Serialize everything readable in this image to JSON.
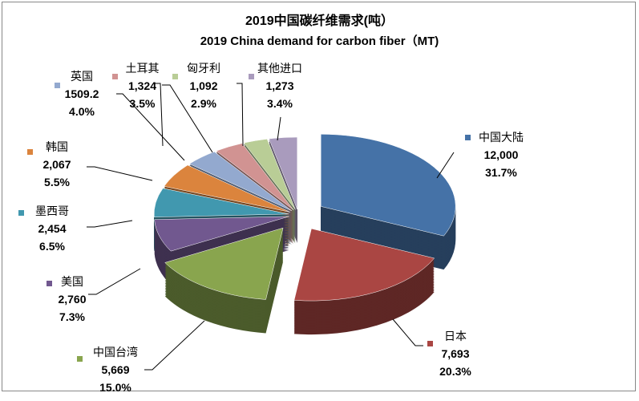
{
  "chart_data": {
    "type": "pie",
    "style": "3d-exploded",
    "title": "2019中国碳纤维需求(吨）",
    "subtitle": "2019 China demand for carbon fiber（MT)",
    "slices": [
      {
        "label": "中国大陆",
        "value": "12,000",
        "num": 12000,
        "pct": "31.7%",
        "color": "#4572A7"
      },
      {
        "label": "日本",
        "value": "7,693",
        "num": 7693,
        "pct": "20.3%",
        "color": "#AA4643"
      },
      {
        "label": "中国台湾",
        "value": "5,669",
        "num": 5669,
        "pct": "15.0%",
        "color": "#89A54E"
      },
      {
        "label": "美国",
        "value": "2,760",
        "num": 2760,
        "pct": "7.3%",
        "color": "#71588F"
      },
      {
        "label": "墨西哥",
        "value": "2,454",
        "num": 2454,
        "pct": "6.5%",
        "color": "#4198AF"
      },
      {
        "label": "韩国",
        "value": "2,067",
        "num": 2067,
        "pct": "5.5%",
        "color": "#DB843D"
      },
      {
        "label": "英国",
        "value": "1509.2",
        "num": 1509.2,
        "pct": "4.0%",
        "color": "#93A9CF"
      },
      {
        "label": "土耳其",
        "value": "1,324",
        "num": 1324,
        "pct": "3.5%",
        "color": "#D19392"
      },
      {
        "label": "匈牙利",
        "value": "1,092",
        "num": 1092,
        "pct": "2.9%",
        "color": "#B9CD96"
      },
      {
        "label": "其他进口",
        "value": "1,273",
        "num": 1273,
        "pct": "3.4%",
        "color": "#A99BBD"
      }
    ]
  }
}
